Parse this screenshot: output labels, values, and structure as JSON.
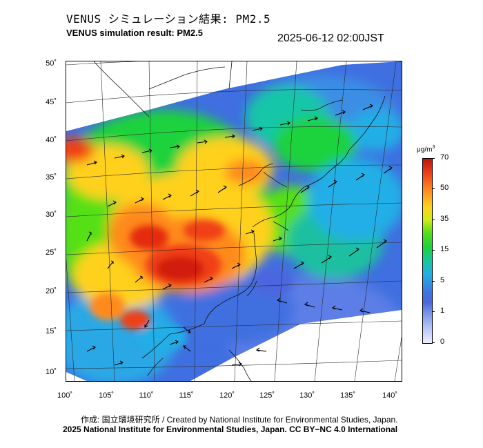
{
  "header": {
    "title_jp": "VENUS シミュレーション結果: PM2.5",
    "title_en": "VENUS simulation result: PM2.5",
    "timestamp": "2025-06-12 02:00JST"
  },
  "map": {
    "lat_ticks": [
      "50˚",
      "45˚",
      "40˚",
      "35˚",
      "30˚",
      "25˚",
      "20˚",
      "15˚",
      "10˚"
    ],
    "lon_ticks": [
      "100˚",
      "105˚",
      "110˚",
      "115˚",
      "120˚",
      "125˚",
      "130˚",
      "135˚",
      "140˚"
    ],
    "extent": {
      "lon": [
        100,
        142
      ],
      "lat": [
        9,
        51
      ]
    }
  },
  "colorbar": {
    "unit": "μg/m",
    "unit_sup": "3",
    "ticks": [
      "70",
      "50",
      "35",
      "15",
      "5",
      "1",
      "0"
    ]
  },
  "footer": {
    "credit_jp": "作成: 国立環境研究所 / Created by National Institute for Environmental Studies, Japan.",
    "copyright": "2025 National Institute for Environmental Studies, Japan. CC BY−NC 4.0 International"
  },
  "colors": {
    "very_high": "#c0150a",
    "high": "#ff8a1e",
    "moderate": "#d2ec12",
    "medium": "#1ad23c",
    "low": "#20aee6",
    "very_low": "#4c66de",
    "trace": "#aec0f4"
  }
}
